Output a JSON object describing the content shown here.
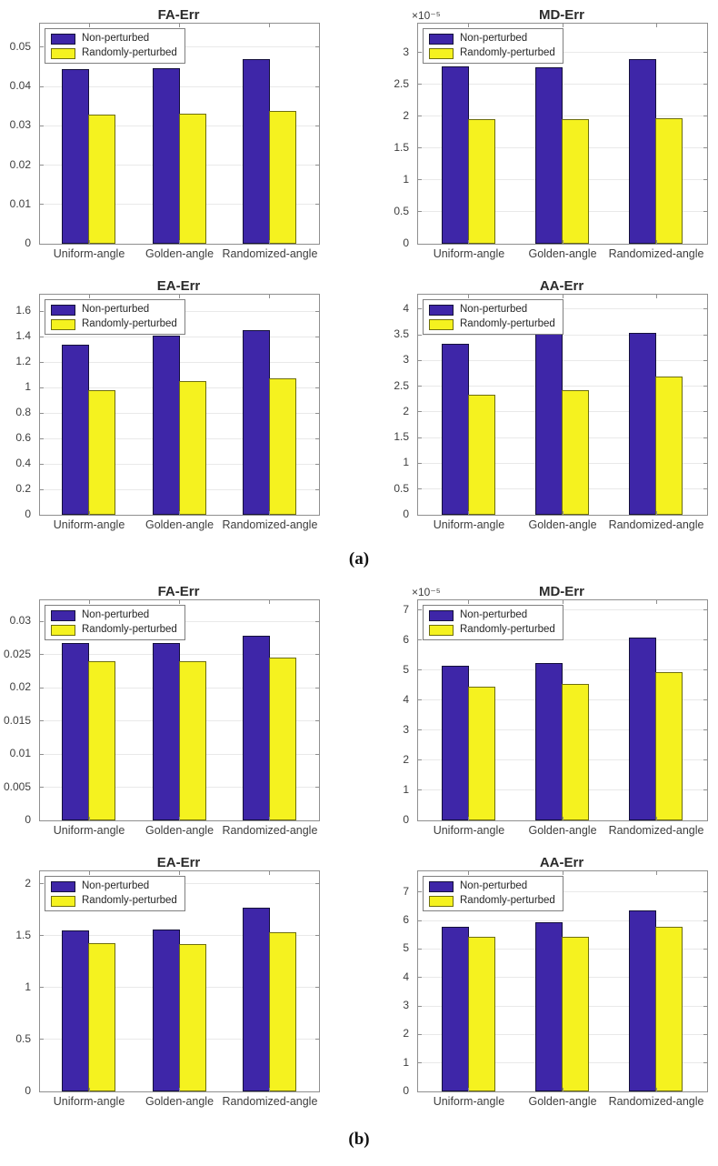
{
  "figure": {
    "background": "#ffffff",
    "axis_color": "#8f8f8f",
    "grid_color": "#e9e9e9",
    "label_color": "#3d3d3d"
  },
  "panels": [
    {
      "caption": "(a)"
    },
    {
      "caption": "(b)"
    }
  ],
  "series_styles": {
    "non_perturbed_fill": "#3E26A8",
    "non_perturbed_edge": "#14103a",
    "randomly_perturbed_fill": "#F5F21F",
    "randomly_perturbed_edge": "#6e6e10"
  },
  "chart_data": [
    {
      "type": "bar",
      "panel": "a",
      "title": "FA-Err",
      "exponent_label": "",
      "categories": [
        "Uniform-angle",
        "Golden-angle",
        "Randomized-angle"
      ],
      "series": [
        {
          "name": "Non-perturbed",
          "fill": "#3E26A8",
          "edge": "#14103a",
          "values": [
            0.0445,
            0.0447,
            0.047
          ]
        },
        {
          "name": "Randomly-perturbed",
          "fill": "#F5F21F",
          "edge": "#6e6e10",
          "values": [
            0.0328,
            0.0332,
            0.0338
          ]
        }
      ],
      "ylim": [
        0,
        0.056
      ],
      "grid": true,
      "legend_position": "top-left",
      "yticks": [
        {
          "v": 0,
          "label": "0"
        },
        {
          "v": 0.01,
          "label": "0.01"
        },
        {
          "v": 0.02,
          "label": "0.02"
        },
        {
          "v": 0.03,
          "label": "0.03"
        },
        {
          "v": 0.04,
          "label": "0.04"
        },
        {
          "v": 0.05,
          "label": "0.05"
        }
      ]
    },
    {
      "type": "bar",
      "panel": "a",
      "title": "MD-Err",
      "exponent_label": "×10⁻⁵",
      "categories": [
        "Uniform-angle",
        "Golden-angle",
        "Randomized-angle"
      ],
      "series": [
        {
          "name": "Non-perturbed",
          "fill": "#3E26A8",
          "edge": "#14103a",
          "values": [
            2.78,
            2.77,
            2.89
          ]
        },
        {
          "name": "Randomly-perturbed",
          "fill": "#F5F21F",
          "edge": "#6e6e10",
          "values": [
            1.95,
            1.95,
            1.97
          ]
        }
      ],
      "ylim": [
        0,
        3.45
      ],
      "grid": true,
      "legend_position": "top-left",
      "yticks": [
        {
          "v": 0,
          "label": "0"
        },
        {
          "v": 0.5,
          "label": "0.5"
        },
        {
          "v": 1,
          "label": "1"
        },
        {
          "v": 1.5,
          "label": "1.5"
        },
        {
          "v": 2,
          "label": "2"
        },
        {
          "v": 2.5,
          "label": "2.5"
        },
        {
          "v": 3,
          "label": "3"
        }
      ]
    },
    {
      "type": "bar",
      "panel": "a",
      "title": "EA-Err",
      "exponent_label": "",
      "categories": [
        "Uniform-angle",
        "Golden-angle",
        "Randomized-angle"
      ],
      "series": [
        {
          "name": "Non-perturbed",
          "fill": "#3E26A8",
          "edge": "#14103a",
          "values": [
            1.34,
            1.41,
            1.45
          ]
        },
        {
          "name": "Randomly-perturbed",
          "fill": "#F5F21F",
          "edge": "#6e6e10",
          "values": [
            0.98,
            1.05,
            1.07
          ]
        }
      ],
      "ylim": [
        0,
        1.73
      ],
      "grid": true,
      "legend_position": "top-left",
      "yticks": [
        {
          "v": 0,
          "label": "0"
        },
        {
          "v": 0.2,
          "label": "0.2"
        },
        {
          "v": 0.4,
          "label": "0.4"
        },
        {
          "v": 0.6,
          "label": "0.6"
        },
        {
          "v": 0.8,
          "label": "0.8"
        },
        {
          "v": 1,
          "label": "1"
        },
        {
          "v": 1.2,
          "label": "1.2"
        },
        {
          "v": 1.4,
          "label": "1.4"
        },
        {
          "v": 1.6,
          "label": "1.6"
        }
      ]
    },
    {
      "type": "bar",
      "panel": "a",
      "title": "AA-Err",
      "exponent_label": "",
      "categories": [
        "Uniform-angle",
        "Golden-angle",
        "Randomized-angle"
      ],
      "series": [
        {
          "name": "Non-perturbed",
          "fill": "#3E26A8",
          "edge": "#14103a",
          "values": [
            3.33,
            3.55,
            3.53
          ]
        },
        {
          "name": "Randomly-perturbed",
          "fill": "#F5F21F",
          "edge": "#6e6e10",
          "values": [
            2.34,
            2.43,
            2.68
          ]
        }
      ],
      "ylim": [
        0,
        4.28
      ],
      "grid": true,
      "legend_position": "top-left",
      "yticks": [
        {
          "v": 0,
          "label": "0"
        },
        {
          "v": 0.5,
          "label": "0.5"
        },
        {
          "v": 1,
          "label": "1"
        },
        {
          "v": 1.5,
          "label": "1.5"
        },
        {
          "v": 2,
          "label": "2"
        },
        {
          "v": 2.5,
          "label": "2.5"
        },
        {
          "v": 3,
          "label": "3"
        },
        {
          "v": 3.5,
          "label": "3.5"
        },
        {
          "v": 4,
          "label": "4"
        }
      ]
    },
    {
      "type": "bar",
      "panel": "b",
      "title": "FA-Err",
      "exponent_label": "",
      "categories": [
        "Uniform-angle",
        "Golden-angle",
        "Randomized-angle"
      ],
      "series": [
        {
          "name": "Non-perturbed",
          "fill": "#3E26A8",
          "edge": "#14103a",
          "values": [
            0.0268,
            0.0267,
            0.0278
          ]
        },
        {
          "name": "Randomly-perturbed",
          "fill": "#F5F21F",
          "edge": "#6e6e10",
          "values": [
            0.024,
            0.024,
            0.0245
          ]
        }
      ],
      "ylim": [
        0,
        0.0332
      ],
      "grid": true,
      "legend_position": "top-left",
      "yticks": [
        {
          "v": 0,
          "label": "0"
        },
        {
          "v": 0.005,
          "label": "0.005"
        },
        {
          "v": 0.01,
          "label": "0.01"
        },
        {
          "v": 0.015,
          "label": "0.015"
        },
        {
          "v": 0.02,
          "label": "0.02"
        },
        {
          "v": 0.025,
          "label": "0.025"
        },
        {
          "v": 0.03,
          "label": "0.03"
        }
      ]
    },
    {
      "type": "bar",
      "panel": "b",
      "title": "MD-Err",
      "exponent_label": "×10⁻⁵",
      "categories": [
        "Uniform-angle",
        "Golden-angle",
        "Randomized-angle"
      ],
      "series": [
        {
          "name": "Non-perturbed",
          "fill": "#3E26A8",
          "edge": "#14103a",
          "values": [
            5.15,
            5.25,
            6.08
          ]
        },
        {
          "name": "Randomly-perturbed",
          "fill": "#F5F21F",
          "edge": "#6e6e10",
          "values": [
            4.45,
            4.55,
            4.95
          ]
        }
      ],
      "ylim": [
        0,
        7.33
      ],
      "grid": true,
      "legend_position": "top-left",
      "yticks": [
        {
          "v": 0,
          "label": "0"
        },
        {
          "v": 1,
          "label": "1"
        },
        {
          "v": 2,
          "label": "2"
        },
        {
          "v": 3,
          "label": "3"
        },
        {
          "v": 4,
          "label": "4"
        },
        {
          "v": 5,
          "label": "5"
        },
        {
          "v": 6,
          "label": "6"
        },
        {
          "v": 7,
          "label": "7"
        }
      ]
    },
    {
      "type": "bar",
      "panel": "b",
      "title": "EA-Err",
      "exponent_label": "",
      "categories": [
        "Uniform-angle",
        "Golden-angle",
        "Randomized-angle"
      ],
      "series": [
        {
          "name": "Non-perturbed",
          "fill": "#3E26A8",
          "edge": "#14103a",
          "values": [
            1.55,
            1.56,
            1.77
          ]
        },
        {
          "name": "Randomly-perturbed",
          "fill": "#F5F21F",
          "edge": "#6e6e10",
          "values": [
            1.43,
            1.42,
            1.53
          ]
        }
      ],
      "ylim": [
        0,
        2.12
      ],
      "grid": true,
      "legend_position": "top-left",
      "yticks": [
        {
          "v": 0,
          "label": "0"
        },
        {
          "v": 0.5,
          "label": "0.5"
        },
        {
          "v": 1,
          "label": "1"
        },
        {
          "v": 1.5,
          "label": "1.5"
        },
        {
          "v": 2,
          "label": "2"
        }
      ]
    },
    {
      "type": "bar",
      "panel": "b",
      "title": "AA-Err",
      "exponent_label": "",
      "categories": [
        "Uniform-angle",
        "Golden-angle",
        "Randomized-angle"
      ],
      "series": [
        {
          "name": "Non-perturbed",
          "fill": "#3E26A8",
          "edge": "#14103a",
          "values": [
            5.77,
            5.95,
            6.37
          ]
        },
        {
          "name": "Randomly-perturbed",
          "fill": "#F5F21F",
          "edge": "#6e6e10",
          "values": [
            5.42,
            5.44,
            5.78
          ]
        }
      ],
      "ylim": [
        0,
        7.73
      ],
      "grid": true,
      "legend_position": "top-left",
      "yticks": [
        {
          "v": 0,
          "label": "0"
        },
        {
          "v": 1,
          "label": "1"
        },
        {
          "v": 2,
          "label": "2"
        },
        {
          "v": 3,
          "label": "3"
        },
        {
          "v": 4,
          "label": "4"
        },
        {
          "v": 5,
          "label": "5"
        },
        {
          "v": 6,
          "label": "6"
        },
        {
          "v": 7,
          "label": "7"
        }
      ]
    }
  ]
}
